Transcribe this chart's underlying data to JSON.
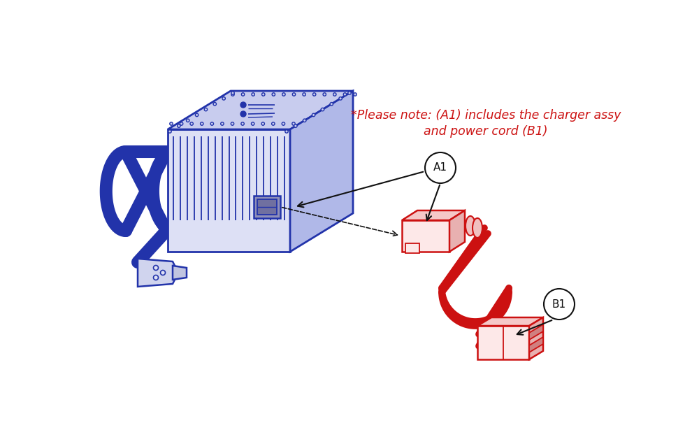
{
  "bg_color": "#ffffff",
  "blue": "#2233aa",
  "blue_light": "#dde0f5",
  "blue_mid": "#c8ccee",
  "blue_dark": "#b0b8e8",
  "red": "#cc1111",
  "red_light": "#fde8e8",
  "dark": "#111111",
  "gray_dash": "#666666",
  "note_line1": "*Please note: (A1) includes the charger assy",
  "note_line2": "and power cord (B1)",
  "label_A1": "A1",
  "label_B1": "B1",
  "fig_width": 10.0,
  "fig_height": 6.15,
  "dpi": 100
}
